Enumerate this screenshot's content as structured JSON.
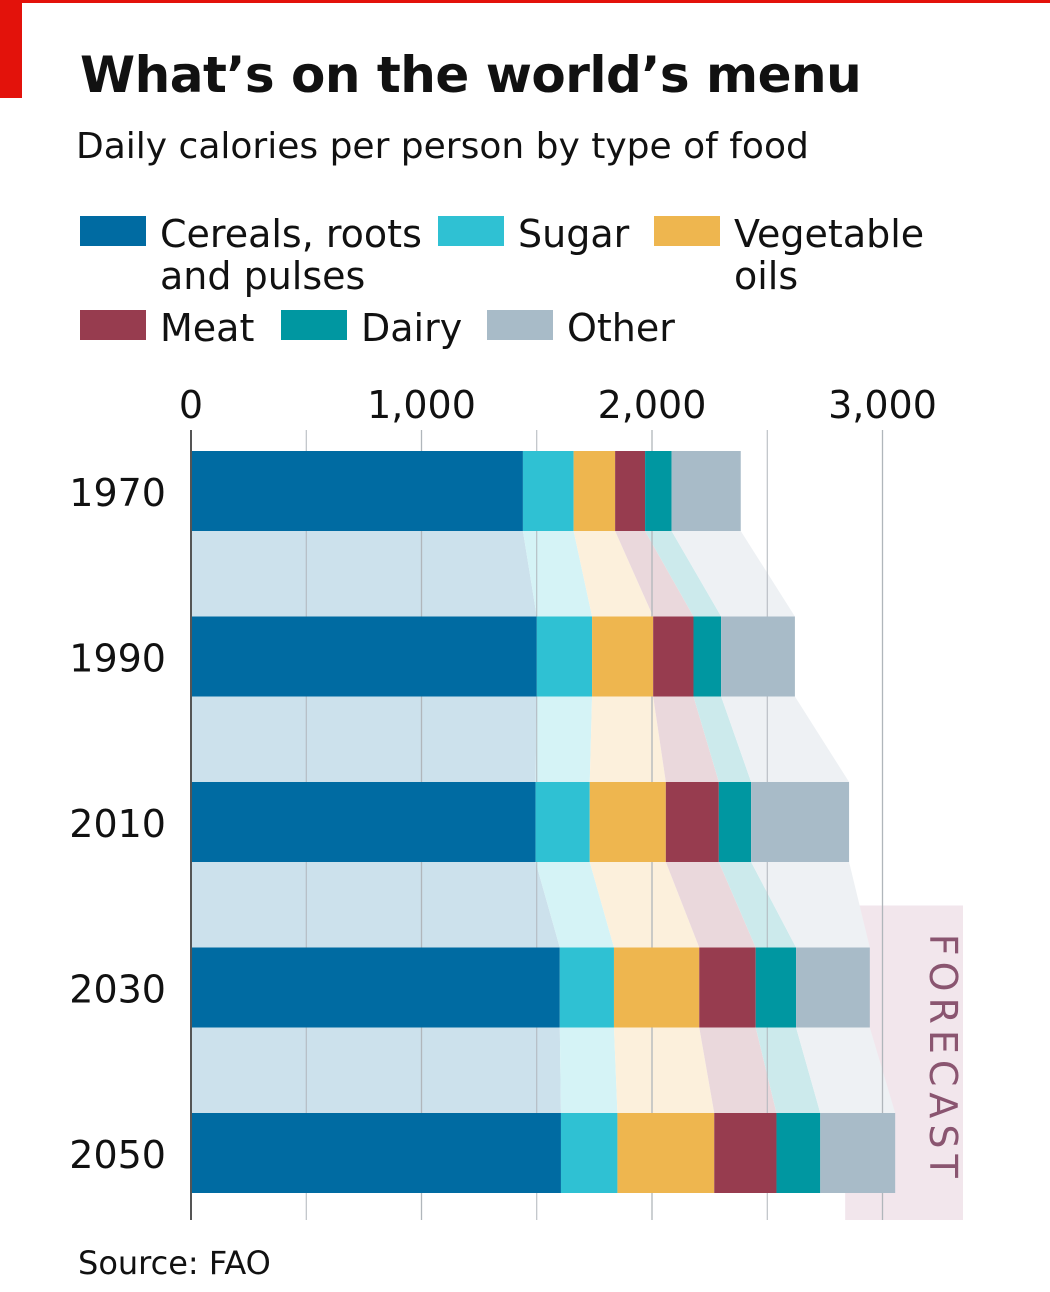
{
  "title": "What’s on the world’s menu",
  "subtitle": "Daily calories per person by type of food",
  "source": "Source: FAO",
  "forecast_label": "FORECAST",
  "colors": {
    "Cereals": "#006ba2",
    "Sugar": "#2fc1d3",
    "Oils": "#eeb64f",
    "Meat": "#973c4f",
    "Dairy": "#0097a1",
    "Other": "#a8bbc8",
    "band": "#cce1ec",
    "forecast_bg": "#f2e6ec",
    "forecast_text": "#8a5570",
    "axis": "#555555"
  },
  "legend": [
    {
      "label": "Cereals, roots\nand pulses",
      "color": "#006ba2"
    },
    {
      "label": "Sugar",
      "color": "#2fc1d3"
    },
    {
      "label": "Vegetable\noils",
      "color": "#eeb64f"
    },
    {
      "label": "Meat",
      "color": "#973c4f"
    },
    {
      "label": "Dairy",
      "color": "#0097a1"
    },
    {
      "label": "Other",
      "color": "#a8bbc8"
    }
  ],
  "chart_data": {
    "type": "bar",
    "stacked": true,
    "orientation": "horizontal",
    "title": "What’s on the world’s menu",
    "subtitle": "Daily calories per person by type of food",
    "categories": [
      "1970",
      "1990",
      "2010",
      "2030",
      "2050"
    ],
    "xlim": [
      0,
      3300
    ],
    "xticks": [
      0,
      1000,
      2000,
      3000
    ],
    "xtick_labels": [
      "0",
      "1,000",
      "2,000",
      "3,000"
    ],
    "grid": true,
    "forecast_from": "2030",
    "series": [
      {
        "name": "Cereals, roots and pulses",
        "values": [
          1440,
          1500,
          1495,
          1600,
          1605
        ]
      },
      {
        "name": "Sugar",
        "values": [
          220,
          240,
          235,
          235,
          245
        ]
      },
      {
        "name": "Vegetable oils",
        "values": [
          180,
          265,
          330,
          370,
          420
        ]
      },
      {
        "name": "Meat",
        "values": [
          130,
          175,
          230,
          245,
          270
        ]
      },
      {
        "name": "Dairy",
        "values": [
          115,
          120,
          140,
          175,
          190
        ]
      },
      {
        "name": "Other",
        "values": [
          300,
          320,
          425,
          320,
          325
        ]
      }
    ],
    "source": "Source: FAO"
  }
}
